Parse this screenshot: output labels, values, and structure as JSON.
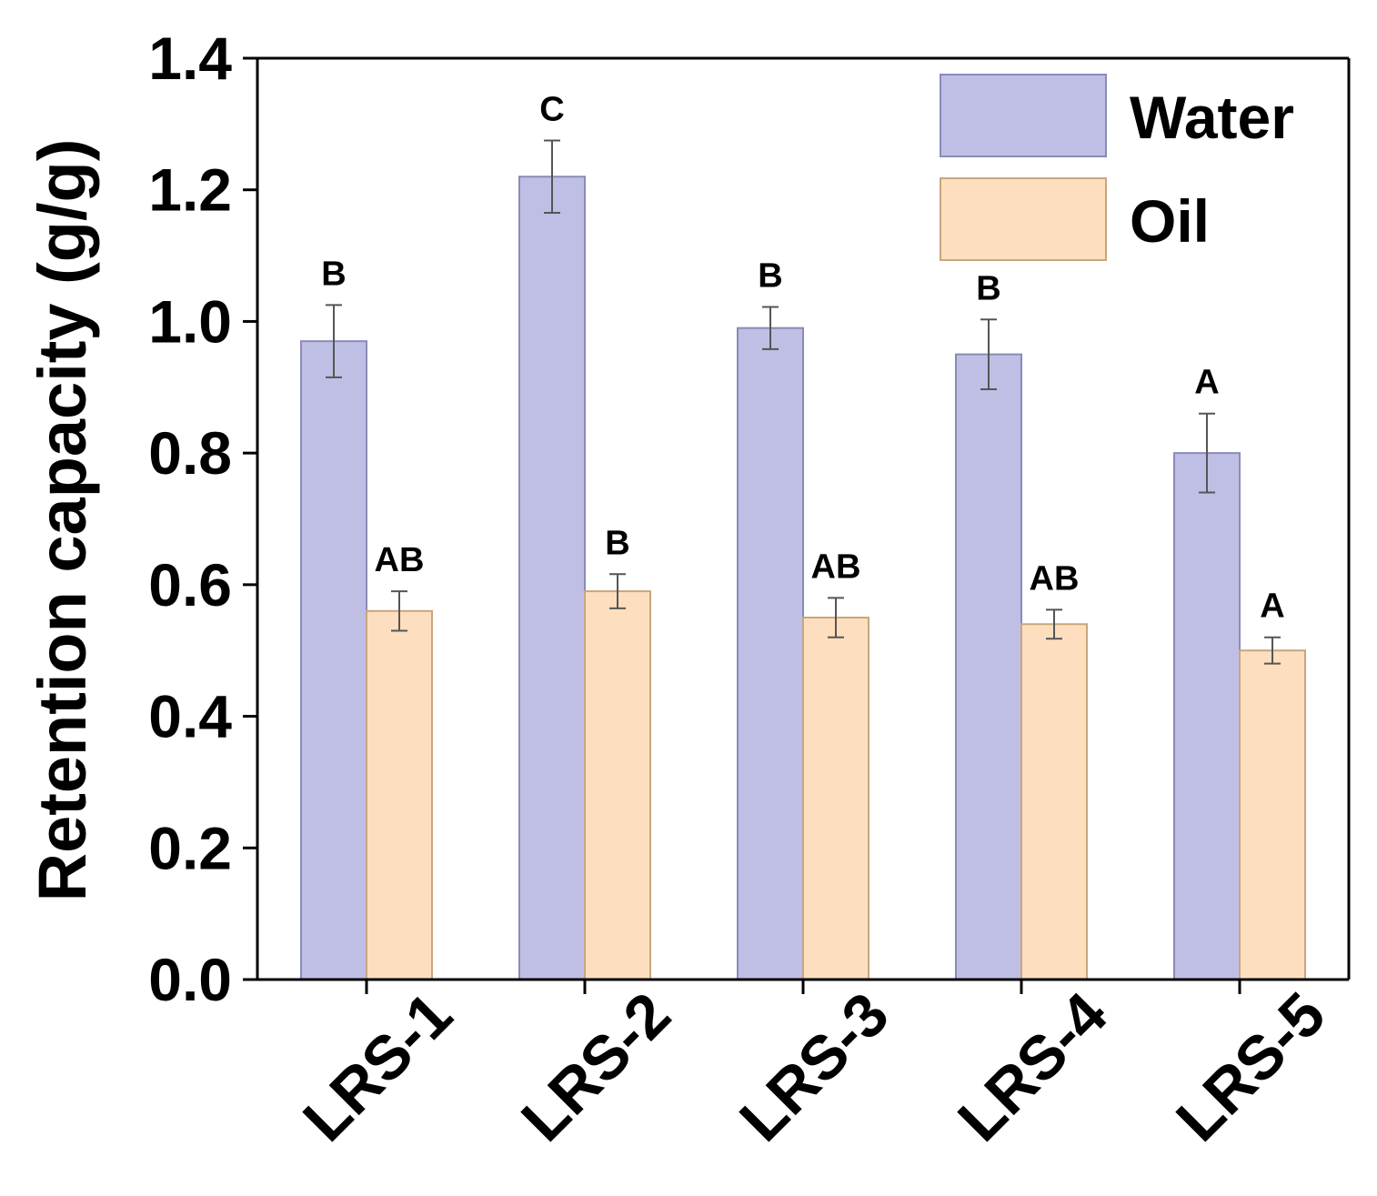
{
  "chart_data": {
    "type": "bar",
    "title": "",
    "xlabel": "",
    "ylabel": "Retention capacity (g/g)",
    "ylim": [
      0,
      1.4
    ],
    "yticks": [
      "0.0",
      "0.2",
      "0.4",
      "0.6",
      "0.8",
      "1.0",
      "1.2",
      "1.4"
    ],
    "grid": false,
    "legend_position": "top-right",
    "categories": [
      "LRS-1",
      "LRS-2",
      "LRS-3",
      "LRS-4",
      "LRS-5"
    ],
    "series": [
      {
        "name": "Water",
        "color": "#BFBFE6",
        "edge": "#8A8AB8",
        "values": [
          0.97,
          1.22,
          0.99,
          0.95,
          0.8
        ],
        "errors": [
          0.055,
          0.055,
          0.032,
          0.053,
          0.06
        ],
        "letters": [
          "B",
          "C",
          "B",
          "B",
          "A"
        ]
      },
      {
        "name": "Oil",
        "color": "#FDDFBF",
        "edge": "#C9A57E",
        "values": [
          0.56,
          0.59,
          0.55,
          0.54,
          0.5
        ],
        "errors": [
          0.03,
          0.026,
          0.03,
          0.022,
          0.02
        ],
        "letters": [
          "AB",
          "B",
          "AB",
          "AB",
          "A"
        ]
      }
    ]
  }
}
